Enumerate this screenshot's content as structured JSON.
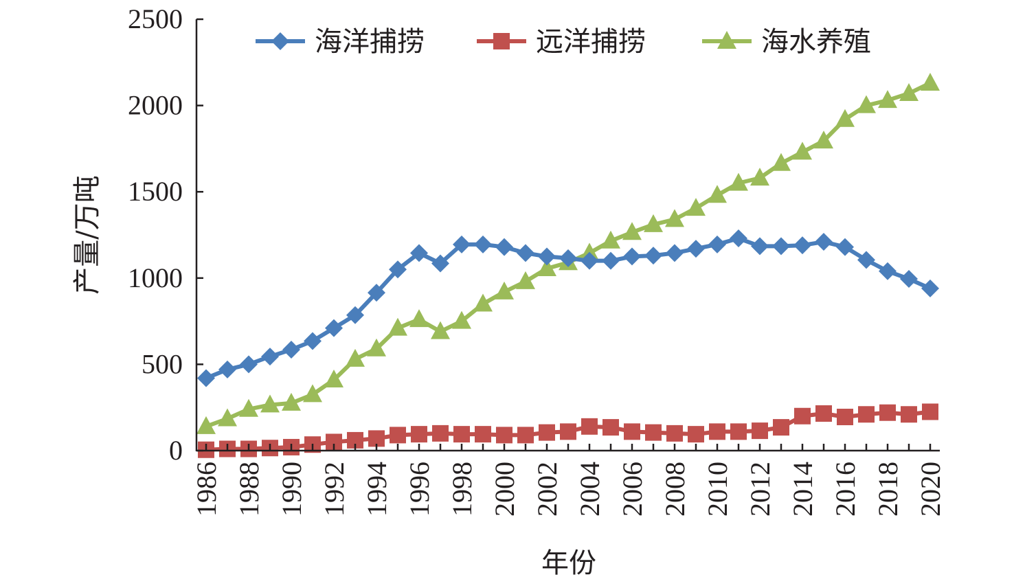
{
  "chart_data": {
    "type": "line",
    "title": "",
    "xlabel": "年份",
    "ylabel": "产量/万吨",
    "ylim": [
      0,
      2500
    ],
    "xlim": [
      1986,
      2020
    ],
    "yticks": [
      0,
      500,
      1000,
      1500,
      2000,
      2500
    ],
    "xticks": [
      1986,
      1988,
      1990,
      1992,
      1994,
      1996,
      1998,
      2000,
      2002,
      2004,
      2006,
      2008,
      2010,
      2012,
      2014,
      2016,
      2018,
      2020
    ],
    "grid": false,
    "legend": "top",
    "x": [
      1986,
      1987,
      1988,
      1989,
      1990,
      1991,
      1992,
      1993,
      1994,
      1995,
      1996,
      1997,
      1998,
      1999,
      2000,
      2001,
      2002,
      2003,
      2004,
      2005,
      2006,
      2007,
      2008,
      2009,
      2010,
      2011,
      2012,
      2013,
      2014,
      2015,
      2016,
      2017,
      2018,
      2019,
      2020
    ],
    "series": [
      {
        "name": "海洋捕捞",
        "color": "#4a7ebb",
        "marker": "diamond",
        "values": [
          420,
          470,
          500,
          545,
          585,
          635,
          710,
          785,
          915,
          1050,
          1145,
          1085,
          1195,
          1195,
          1180,
          1145,
          1125,
          1115,
          1100,
          1100,
          1125,
          1130,
          1145,
          1170,
          1195,
          1230,
          1185,
          1185,
          1190,
          1210,
          1180,
          1105,
          1040,
          995,
          940
        ]
      },
      {
        "name": "远洋捕捞",
        "color": "#c0504d",
        "marker": "square",
        "values": [
          5,
          10,
          10,
          15,
          20,
          35,
          50,
          60,
          70,
          90,
          95,
          100,
          95,
          95,
          90,
          90,
          105,
          110,
          140,
          135,
          110,
          105,
          100,
          95,
          110,
          110,
          115,
          135,
          200,
          215,
          195,
          210,
          220,
          210,
          225
        ]
      },
      {
        "name": "海水养殖",
        "color": "#9bbb59",
        "marker": "triangle",
        "values": [
          140,
          185,
          240,
          265,
          275,
          325,
          410,
          530,
          590,
          710,
          760,
          690,
          750,
          850,
          920,
          980,
          1055,
          1090,
          1145,
          1215,
          1265,
          1310,
          1340,
          1405,
          1480,
          1550,
          1580,
          1665,
          1730,
          1795,
          1920,
          2000,
          2030,
          2070,
          2130
        ]
      }
    ]
  }
}
